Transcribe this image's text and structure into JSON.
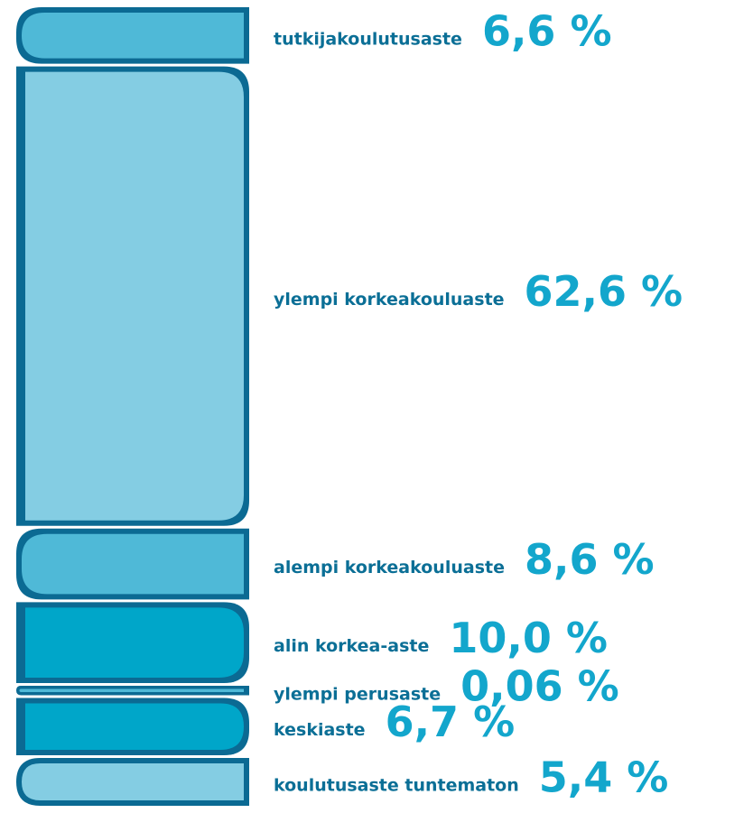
{
  "chart_data": {
    "type": "books",
    "categories": [
      "tutkijakoulutusaste",
      "ylempi korkeakouluaste",
      "alempi korkeakouluaste",
      "alin korkea-aste",
      "ylempi perusaste",
      "keskiaste",
      "koulutusaste tuntematon"
    ],
    "values": [
      6.6,
      62.6,
      8.6,
      10.0,
      0.06,
      6.7,
      5.4
    ],
    "value_labels": [
      "6,6 %",
      "62,6 %",
      "8,6 %",
      "10,0 %",
      "0,06 %",
      "6,7 %",
      "5,4 %"
    ],
    "colors": [
      "#4fb9d7",
      "#84cde3",
      "#4fb9d7",
      "#00a6c9",
      "#4fb9d7",
      "#00a6c9",
      "#84cde3"
    ]
  }
}
